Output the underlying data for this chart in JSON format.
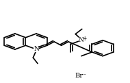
{
  "background_color": "#ffffff",
  "line_color": "#000000",
  "line_width": 1.2,
  "text_color": "#000000",
  "br_label": "Br⁻",
  "n_plus_label": "N",
  "n_label": "N",
  "plus_label": "+",
  "figsize": [
    1.9,
    1.21
  ],
  "dpi": 100
}
